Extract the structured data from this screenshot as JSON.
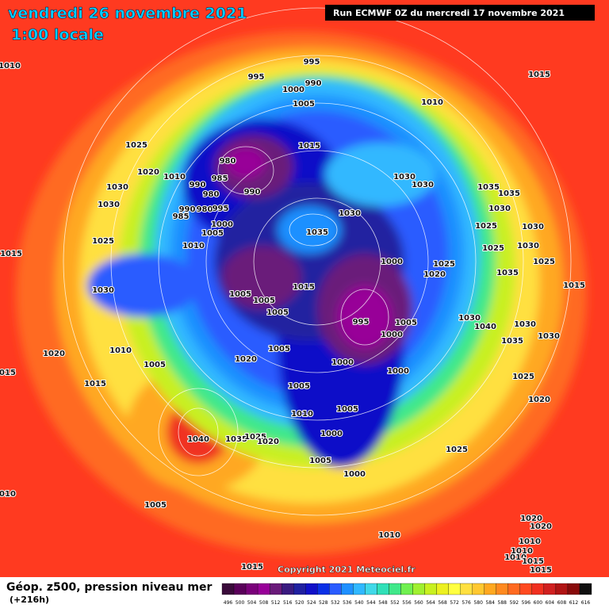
{
  "header": {
    "title": "vendredi 26 novembre 2021",
    "subtitle": "1:00 locale",
    "run": "Run ECMWF 0Z du mercredi 17 novembre 2021"
  },
  "footer": {
    "label": "Géop. z500, pression niveau mer",
    "lead": "(+216h)",
    "copyright": "Copyright 2021 Meteociel.fr"
  },
  "scale": {
    "ticks": [
      496,
      500,
      504,
      508,
      512,
      516,
      520,
      524,
      528,
      532,
      536,
      540,
      544,
      548,
      552,
      556,
      560,
      564,
      568,
      572,
      576,
      580,
      584,
      588,
      592,
      596,
      600,
      604,
      608,
      612,
      616
    ],
    "colors": [
      "#3a0a3a",
      "#5a005a",
      "#7a007a",
      "#980098",
      "#6a1a7a",
      "#3a1a80",
      "#2020a0",
      "#1010c8",
      "#0a30e6",
      "#2a5cff",
      "#1e90ff",
      "#30b8ff",
      "#40d8e8",
      "#30e0b8",
      "#40e88a",
      "#70f050",
      "#a0f030",
      "#c8f020",
      "#ecf020",
      "#ffff40",
      "#ffe040",
      "#ffc830",
      "#ffa820",
      "#ff8a20",
      "#ff6a20",
      "#ff4a20",
      "#f03020",
      "#d02020",
      "#b01414",
      "#880a0a",
      "#101010"
    ]
  },
  "isobars": [
    995,
    995,
    990,
    1000,
    1005,
    1010,
    1015,
    1010,
    1025,
    1020,
    1030,
    1030,
    1015,
    980,
    985,
    990,
    980,
    990,
    1010,
    985,
    990,
    980,
    995,
    1000,
    1005,
    1010,
    1025,
    1015,
    1030,
    1030,
    1030,
    1035,
    1035,
    1035,
    1030,
    1025,
    1025,
    1030,
    1030,
    1025,
    1015,
    1000,
    1025,
    1020,
    1035,
    1015,
    1005,
    1005,
    1005,
    1030,
    995,
    1005,
    1000,
    1030,
    1040,
    1030,
    1035,
    1030,
    1010,
    1020,
    1005,
    1005,
    1020,
    1000,
    1000,
    1025,
    1015,
    1015,
    1005,
    1005,
    1010,
    1020,
    1040,
    1035,
    1025,
    1020,
    1000,
    1005,
    1025,
    1000,
    1005,
    1010,
    1010,
    1020,
    1020,
    1010,
    1010,
    1010,
    1015,
    1015,
    1015
  ]
}
